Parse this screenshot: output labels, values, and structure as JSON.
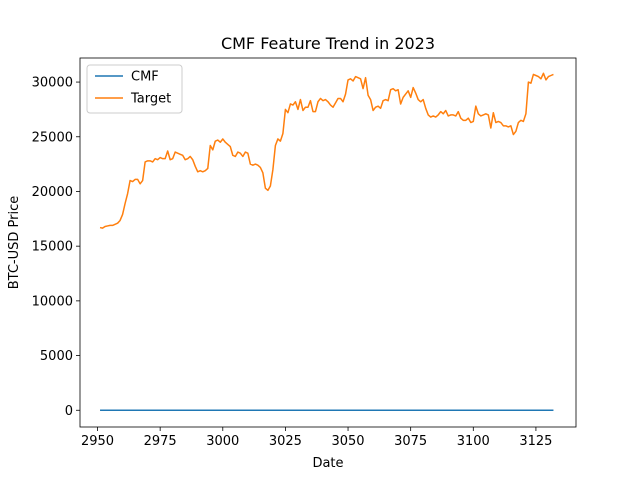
{
  "chart_data": {
    "type": "line",
    "title": "CMF Feature Trend in 2023",
    "xlabel": "Date",
    "ylabel": "BTC-USD Price",
    "xlim": [
      2943,
      3141
    ],
    "ylim": [
      -1530,
      32200
    ],
    "xticks": [
      2950,
      2975,
      3000,
      3025,
      3050,
      3075,
      3100,
      3125
    ],
    "yticks": [
      0,
      5000,
      10000,
      15000,
      20000,
      25000,
      30000
    ],
    "grid": false,
    "legend_position": "top-left",
    "series": [
      {
        "name": "CMF",
        "color": "#1f77b4",
        "x": [
          2951,
          3132
        ],
        "y": [
          0,
          0
        ]
      },
      {
        "name": "Target",
        "color": "#ff7f0e",
        "x": [
          2951,
          2952,
          2953,
          2954,
          2955,
          2956,
          2957,
          2958,
          2959,
          2960,
          2961,
          2962,
          2963,
          2964,
          2965,
          2966,
          2967,
          2968,
          2969,
          2970,
          2971,
          2972,
          2973,
          2974,
          2975,
          2976,
          2977,
          2978,
          2979,
          2980,
          2981,
          2982,
          2983,
          2984,
          2985,
          2986,
          2987,
          2988,
          2989,
          2990,
          2991,
          2992,
          2993,
          2994,
          2995,
          2996,
          2997,
          2998,
          2999,
          3000,
          3001,
          3002,
          3003,
          3004,
          3005,
          3006,
          3007,
          3008,
          3009,
          3010,
          3011,
          3012,
          3013,
          3014,
          3015,
          3016,
          3017,
          3018,
          3019,
          3020,
          3021,
          3022,
          3023,
          3024,
          3025,
          3026,
          3027,
          3028,
          3029,
          3030,
          3031,
          3032,
          3033,
          3034,
          3035,
          3036,
          3037,
          3038,
          3039,
          3040,
          3041,
          3042,
          3043,
          3044,
          3045,
          3046,
          3047,
          3048,
          3049,
          3050,
          3051,
          3052,
          3053,
          3054,
          3055,
          3056,
          3057,
          3058,
          3059,
          3060,
          3061,
          3062,
          3063,
          3064,
          3065,
          3066,
          3067,
          3068,
          3069,
          3070,
          3071,
          3072,
          3073,
          3074,
          3075,
          3076,
          3077,
          3078,
          3079,
          3080,
          3081,
          3082,
          3083,
          3084,
          3085,
          3086,
          3087,
          3088,
          3089,
          3090,
          3091,
          3092,
          3093,
          3094,
          3095,
          3096,
          3097,
          3098,
          3099,
          3100,
          3101,
          3102,
          3103,
          3104,
          3105,
          3106,
          3107,
          3108,
          3109,
          3110,
          3111,
          3112,
          3113,
          3114,
          3115,
          3116,
          3117,
          3118,
          3119,
          3120,
          3121,
          3122,
          3123,
          3124,
          3125,
          3126,
          3127,
          3128,
          3129,
          3130,
          3131,
          3132
        ],
        "y": [
          16700,
          16650,
          16800,
          16850,
          16900,
          16900,
          17000,
          17100,
          17350,
          17900,
          18900,
          19800,
          21000,
          20900,
          21100,
          21100,
          20700,
          21000,
          22700,
          22800,
          22800,
          22700,
          23000,
          22900,
          23100,
          23000,
          23000,
          23700,
          22900,
          23000,
          23600,
          23500,
          23400,
          23300,
          22900,
          23000,
          23200,
          22900,
          22300,
          21800,
          21900,
          21800,
          21900,
          22100,
          24200,
          23800,
          24600,
          24700,
          24500,
          24800,
          24500,
          24300,
          24100,
          23300,
          23200,
          23600,
          23500,
          23200,
          23600,
          23500,
          22500,
          22400,
          22500,
          22400,
          22200,
          21700,
          20300,
          20100,
          20500,
          22000,
          24200,
          24800,
          24600,
          25300,
          27500,
          27200,
          28000,
          27900,
          28200,
          27500,
          28400,
          27400,
          27700,
          27700,
          28300,
          27300,
          27300,
          28200,
          28500,
          28300,
          28400,
          28200,
          27900,
          27700,
          28100,
          28500,
          28500,
          28200,
          28900,
          30200,
          30300,
          30100,
          30500,
          30400,
          30300,
          29400,
          30400,
          28800,
          28400,
          27400,
          27700,
          27800,
          27600,
          28300,
          28400,
          28300,
          29300,
          29400,
          29200,
          29300,
          28000,
          28600,
          28900,
          29200,
          28600,
          29500,
          29000,
          28400,
          28200,
          28400,
          27600,
          27000,
          26800,
          26900,
          26800,
          27000,
          27300,
          27100,
          27400,
          26900,
          27000,
          27000,
          26900,
          27300,
          26700,
          26500,
          26500,
          26700,
          26300,
          26400,
          27800,
          27100,
          26900,
          27000,
          27100,
          27000,
          25800,
          27200,
          26300,
          26400,
          26300,
          26000,
          26000,
          25900,
          26000,
          25200,
          25500,
          26300,
          26500,
          26400,
          27100,
          30000,
          29900,
          30700,
          30600,
          30500,
          30300,
          30800,
          30200,
          30500,
          30600,
          30700
        ]
      }
    ]
  }
}
